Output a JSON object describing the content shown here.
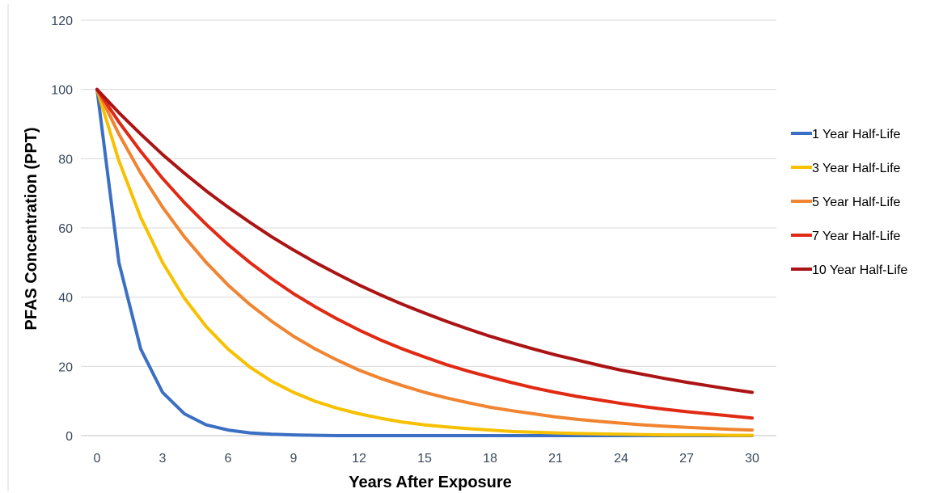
{
  "chart_data": {
    "type": "line",
    "title": "",
    "xlabel": "Years After Exposure",
    "ylabel": "PFAS Concentration (PPT)",
    "xlim": [
      0,
      30
    ],
    "ylim": [
      0,
      120
    ],
    "xticks": [
      0,
      3,
      6,
      9,
      12,
      15,
      18,
      21,
      24,
      27,
      30
    ],
    "yticks": [
      0,
      20,
      40,
      60,
      80,
      100,
      120
    ],
    "grid": "horizontal",
    "legend_position": "right",
    "x": [
      0,
      1,
      2,
      3,
      4,
      5,
      6,
      7,
      8,
      9,
      10,
      11,
      12,
      13,
      14,
      15,
      16,
      17,
      18,
      19,
      20,
      21,
      22,
      23,
      24,
      25,
      26,
      27,
      28,
      29,
      30
    ],
    "series": [
      {
        "name": "1 Year Half-Life",
        "color": "#3a6fc4",
        "values": [
          100,
          50,
          25,
          12.5,
          6.3,
          3.1,
          1.6,
          0.8,
          0.4,
          0.2,
          0.1,
          0,
          0,
          0,
          0,
          0,
          0,
          0,
          0,
          0,
          0,
          0,
          0,
          0,
          0,
          0,
          0,
          0,
          0,
          0,
          0
        ]
      },
      {
        "name": "3 Year Half-Life",
        "color": "#f7c000",
        "values": [
          100,
          79.4,
          63,
          50,
          39.7,
          31.5,
          25,
          19.8,
          15.7,
          12.5,
          9.9,
          7.9,
          6.3,
          5,
          3.9,
          3.1,
          2.5,
          2,
          1.6,
          1.2,
          1,
          0.8,
          0.6,
          0.5,
          0.4,
          0.3,
          0.2,
          0.2,
          0.2,
          0.1,
          0.1
        ]
      },
      {
        "name": "5 Year Half-Life",
        "color": "#f08430",
        "values": [
          100,
          87.1,
          75.8,
          66,
          57.4,
          50,
          43.5,
          37.9,
          33,
          28.7,
          25,
          21.8,
          18.9,
          16.5,
          14.4,
          12.5,
          10.9,
          9.5,
          8.2,
          7.2,
          6.3,
          5.4,
          4.7,
          4.1,
          3.6,
          3.1,
          2.7,
          2.4,
          2.1,
          1.8,
          1.6
        ]
      },
      {
        "name": "7 Year Half-Life",
        "color": "#e02a14",
        "values": [
          100,
          90.6,
          82.1,
          74.3,
          67.3,
          61,
          55.2,
          50,
          45.3,
          41,
          37.2,
          33.7,
          30.5,
          27.6,
          25,
          22.7,
          20.5,
          18.6,
          16.9,
          15.3,
          13.8,
          12.5,
          11.3,
          10.3,
          9.3,
          8.4,
          7.6,
          6.9,
          6.3,
          5.7,
          5.1
        ]
      },
      {
        "name": "10 Year Half-Life",
        "color": "#ab1414",
        "values": [
          100,
          93.3,
          87.1,
          81.2,
          75.8,
          70.7,
          66,
          61.6,
          57.4,
          53.6,
          50,
          46.7,
          43.5,
          40.6,
          37.9,
          35.4,
          33,
          30.8,
          28.7,
          26.8,
          25,
          23.3,
          21.8,
          20.3,
          18.9,
          17.7,
          16.5,
          15.4,
          14.4,
          13.4,
          12.5
        ]
      }
    ]
  }
}
